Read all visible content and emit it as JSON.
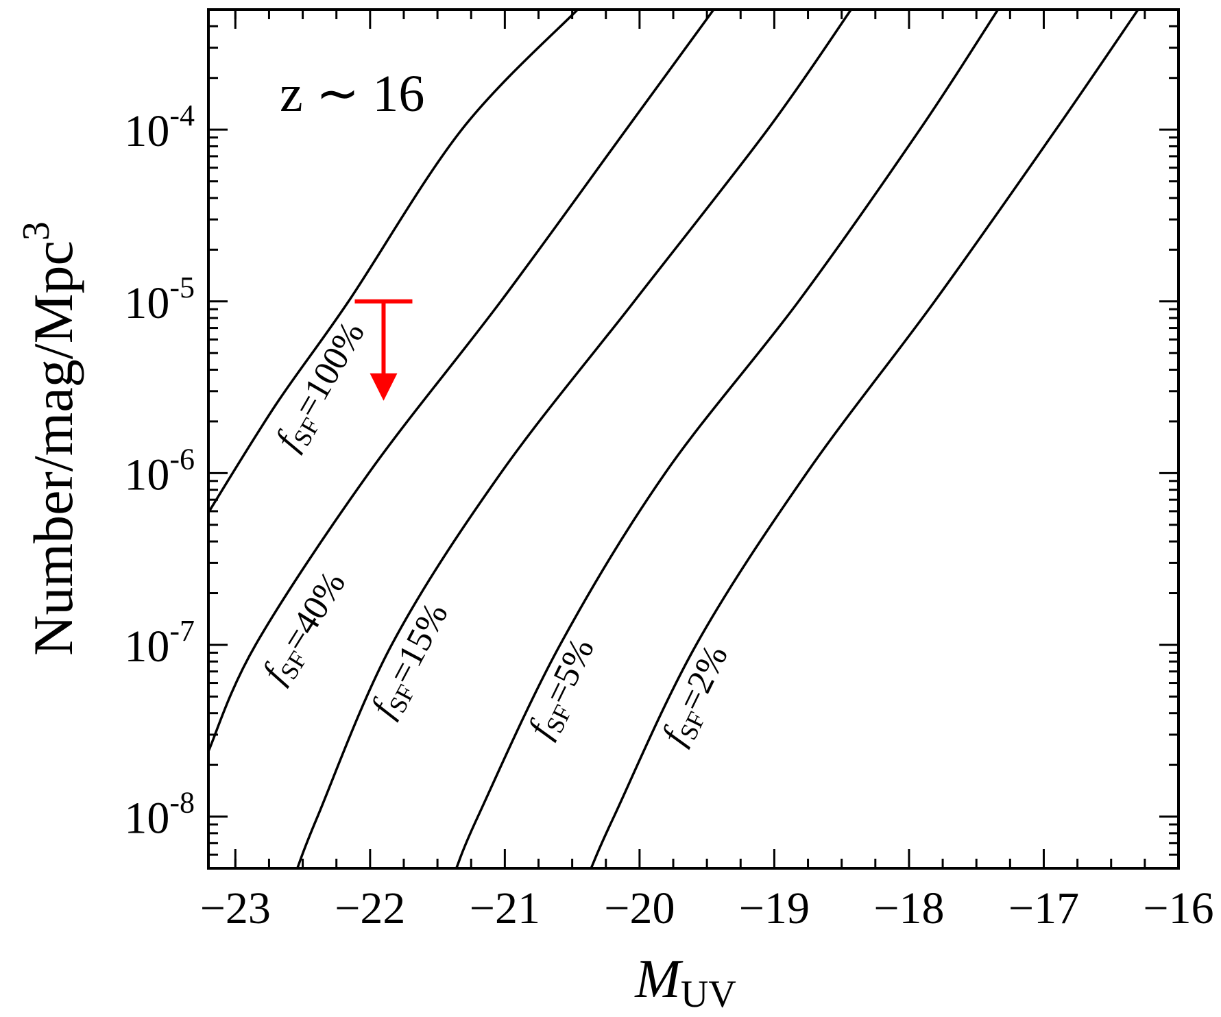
{
  "chart_data": {
    "type": "line",
    "annotation": "z ∼ 16",
    "xlabel": "M",
    "xlabel_sub": "UV",
    "ylabel": "Number/mag/Mpc",
    "ylabel_sup": "3",
    "curve_label": {
      "symbol": "f",
      "subscript": "SF"
    },
    "xlim": [
      -23.2,
      -16
    ],
    "ylim": [
      5e-09,
      0.0005
    ],
    "ylog": true,
    "xticks": [
      {
        "value": -23,
        "label": "−23"
      },
      {
        "value": -22,
        "label": "−22"
      },
      {
        "value": -21,
        "label": "−21"
      },
      {
        "value": -20,
        "label": "−20"
      },
      {
        "value": -19,
        "label": "−19"
      },
      {
        "value": -18,
        "label": "−18"
      },
      {
        "value": -17,
        "label": "−17"
      },
      {
        "value": -16,
        "label": "−16"
      }
    ],
    "yticks": [
      {
        "value": 1e-08,
        "label": "10-8"
      },
      {
        "value": 1e-07,
        "label": "10-7"
      },
      {
        "value": 1e-06,
        "label": "10-6"
      },
      {
        "value": 1e-05,
        "label": "10-5"
      },
      {
        "value": 0.0001,
        "label": "10-4"
      }
    ],
    "series": [
      {
        "name": "=100%",
        "color": "#000000",
        "x": [
          -23.2,
          -22.7,
          -22.16,
          -21.32,
          -20.46
        ],
        "values": [
          5.9e-07,
          2.5e-06,
          1e-05,
          0.0001,
          0.0005
        ]
      },
      {
        "name": "=40%",
        "color": "#000000",
        "x": [
          -23.2,
          -22.85,
          -22.01,
          -21.03,
          -20.1,
          -19.45
        ],
        "values": [
          2.4e-08,
          1e-07,
          1e-06,
          1e-05,
          0.0001,
          0.0005
        ]
      },
      {
        "name": "=15%",
        "color": "#000000",
        "x": [
          -22.54,
          -22.39,
          -21.84,
          -21.03,
          -20.04,
          -19.05,
          -18.43
        ],
        "values": [
          5e-09,
          1e-08,
          1e-07,
          1e-06,
          1e-05,
          0.0001,
          0.0005
        ]
      },
      {
        "name": "=5%",
        "color": "#000000",
        "x": [
          -21.36,
          -21.2,
          -20.59,
          -19.81,
          -18.82,
          -17.92,
          -17.34
        ],
        "values": [
          5e-09,
          1e-08,
          1e-07,
          1e-06,
          1e-05,
          0.0001,
          0.0005
        ]
      },
      {
        "name": "=2%",
        "color": "#000000",
        "x": [
          -20.36,
          -20.19,
          -19.58,
          -18.76,
          -17.81,
          -16.91,
          -16.3
        ],
        "values": [
          5e-09,
          1e-08,
          1e-07,
          1e-06,
          1e-05,
          0.0001,
          0.0005
        ]
      }
    ],
    "upper_limit": {
      "color": "#ff0000",
      "x": [
        -21.9
      ],
      "values": [
        1e-05
      ]
    }
  }
}
